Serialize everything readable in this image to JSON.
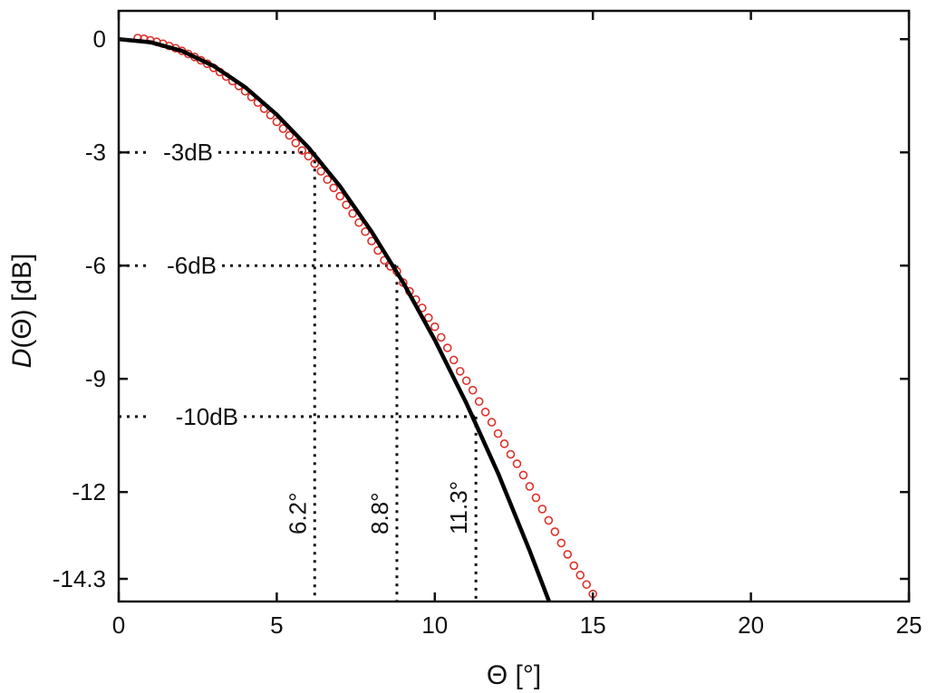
{
  "chart_data": {
    "type": "line",
    "title": "",
    "xlabel": "Θ [°]",
    "ylabel": "D(Θ) [dB]",
    "ylabel_parts": {
      "italic": "D",
      "rest": "(Θ) [dB]"
    },
    "xlim": [
      0,
      25
    ],
    "ylim": [
      -14.3,
      0
    ],
    "ylim_display": [
      -14.9,
      0.75
    ],
    "x_ticks": [
      0,
      5,
      10,
      15,
      20,
      25
    ],
    "x_tick_labels": [
      "0",
      "5",
      "10",
      "15",
      "20",
      "25"
    ],
    "y_ticks": [
      0,
      -3,
      -6,
      -9,
      -12,
      -14.3
    ],
    "y_tick_labels": [
      "0",
      "-3",
      "-6",
      "-9",
      "-12",
      "-14.3"
    ],
    "grid": false,
    "legend": "none",
    "colors": {
      "model": "#000000",
      "measured": "#e0302a",
      "axes": "#111111"
    },
    "series": [
      {
        "style": "line",
        "description": "theoretical directivity curve",
        "x": [
          0,
          1,
          2,
          3,
          4,
          5,
          6,
          7,
          8,
          9,
          10,
          11,
          12,
          13,
          13.8
        ],
        "y": [
          0,
          -0.08,
          -0.31,
          -0.71,
          -1.27,
          -2.0,
          -2.87,
          -3.9,
          -5.1,
          -6.45,
          -7.97,
          -9.65,
          -11.5,
          -13.55,
          -15.3
        ]
      },
      {
        "style": "markers",
        "marker": "open-circle",
        "description": "measured directivity",
        "x": [
          0.6,
          0.8,
          1.0,
          1.2,
          1.4,
          1.6,
          1.8,
          2.0,
          2.2,
          2.4,
          2.6,
          2.8,
          3.0,
          3.2,
          3.4,
          3.6,
          3.8,
          4.0,
          4.2,
          4.4,
          4.6,
          4.8,
          5.0,
          5.2,
          5.4,
          5.6,
          5.8,
          6.0,
          6.2,
          6.4,
          6.6,
          6.8,
          7.0,
          7.2,
          7.4,
          7.6,
          7.8,
          8.0,
          8.2,
          8.4,
          8.6,
          8.8,
          9.0,
          9.2,
          9.4,
          9.6,
          9.8,
          10.0,
          10.2,
          10.4,
          10.6,
          10.8,
          11.0,
          11.2,
          11.4,
          11.6,
          11.8,
          12.0,
          12.2,
          12.4,
          12.6,
          12.8,
          13.0,
          13.2,
          13.4,
          13.6,
          13.8,
          14.0,
          14.2,
          14.4,
          14.6,
          14.8,
          15.0
        ],
        "y": [
          0.03,
          0.01,
          -0.03,
          -0.07,
          -0.12,
          -0.18,
          -0.24,
          -0.31,
          -0.39,
          -0.47,
          -0.56,
          -0.65,
          -0.76,
          -0.87,
          -0.99,
          -1.11,
          -1.24,
          -1.38,
          -1.53,
          -1.68,
          -1.84,
          -2.01,
          -2.19,
          -2.37,
          -2.55,
          -2.75,
          -2.95,
          -3.1,
          -3.3,
          -3.5,
          -3.72,
          -3.94,
          -4.16,
          -4.39,
          -4.62,
          -4.86,
          -5.1,
          -5.35,
          -5.6,
          -5.86,
          -6.02,
          -6.15,
          -6.45,
          -6.68,
          -6.9,
          -7.12,
          -7.38,
          -7.62,
          -7.9,
          -8.18,
          -8.5,
          -8.8,
          -9.05,
          -9.3,
          -9.6,
          -9.88,
          -10.15,
          -10.45,
          -10.72,
          -11.0,
          -11.25,
          -11.55,
          -11.85,
          -12.15,
          -12.45,
          -12.75,
          -13.05,
          -13.35,
          -13.65,
          -13.95,
          -14.2,
          -14.45,
          -14.7
        ]
      }
    ],
    "annotations": {
      "levels": [
        {
          "label": "-3dB",
          "y": -3,
          "x_end": 6.2
        },
        {
          "label": "-6dB",
          "y": -6,
          "x_end": 8.8
        },
        {
          "label": "-10dB",
          "y": -10,
          "x_end": 11.3
        }
      ],
      "angles": [
        {
          "label": "6.2°",
          "x": 6.2,
          "y_top": -3
        },
        {
          "label": "8.8°",
          "x": 8.8,
          "y_top": -6
        },
        {
          "label": "11.3°",
          "x": 11.3,
          "y_top": -10
        }
      ]
    }
  }
}
